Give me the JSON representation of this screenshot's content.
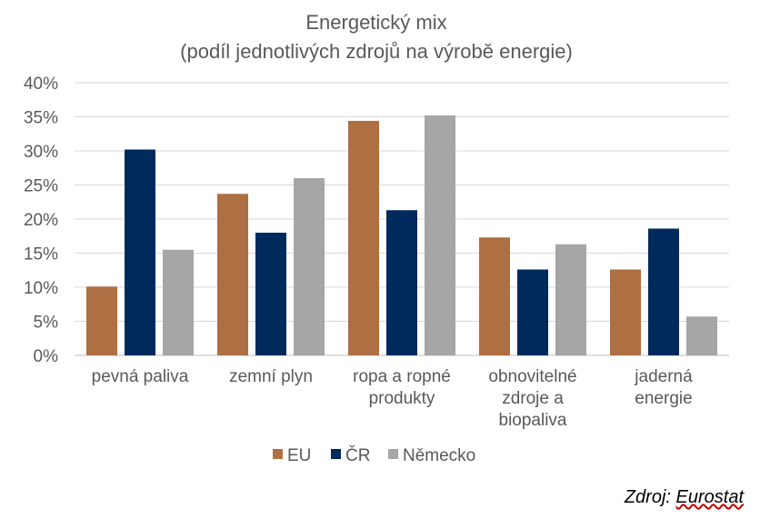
{
  "chart_data": {
    "type": "bar",
    "title": "Energetický mix",
    "subtitle": "(podíl jednotlivých zdrojů na výrobě energie)",
    "categories": [
      [
        "pevná paliva"
      ],
      [
        "zemní plyn"
      ],
      [
        "ropa a ropné",
        "produkty"
      ],
      [
        "obnovitelné",
        "zdroje a",
        "biopaliva"
      ],
      [
        "jaderná",
        "energie"
      ]
    ],
    "series": [
      {
        "name": "EU",
        "color": "#ae6f42",
        "values": [
          10.1,
          23.7,
          34.4,
          17.3,
          12.6
        ]
      },
      {
        "name": "ČR",
        "color": "#002a5c",
        "values": [
          30.2,
          18.0,
          21.3,
          12.6,
          18.6
        ]
      },
      {
        "name": "Německo",
        "color": "#a6a6a6",
        "values": [
          15.5,
          26.0,
          35.2,
          16.3,
          5.7
        ]
      }
    ],
    "yticks": [
      "0%",
      "5%",
      "10%",
      "15%",
      "20%",
      "25%",
      "30%",
      "35%",
      "40%"
    ],
    "ylim": [
      0,
      40
    ],
    "ylabel": "",
    "xlabel": "",
    "grid": true,
    "legend_position": "bottom"
  },
  "source": {
    "prefix": "Zdroj:",
    "name": "Eurostat"
  }
}
